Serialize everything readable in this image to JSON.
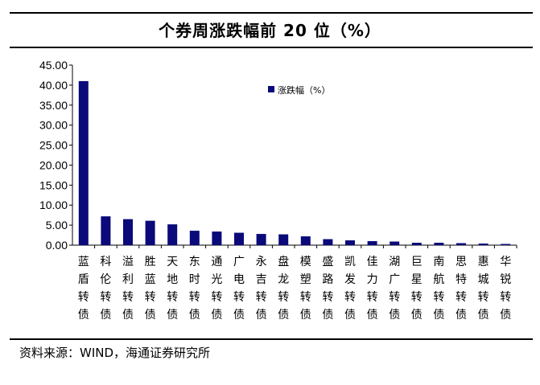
{
  "title": "个券周涨跌幅前 20 位（%）",
  "source": "资料来源：WIND，海通证券研究所",
  "chart_data": {
    "type": "bar",
    "title": "个券周涨跌幅前 20 位（%）",
    "categories": [
      "蓝盾转债",
      "科伦转债",
      "溢利转债",
      "胜蓝转债",
      "天地转债",
      "东时转债",
      "通光转债",
      "广电转债",
      "永吉转债",
      "盘龙转债",
      "模塑转债",
      "盛路转债",
      "凯发转债",
      "佳力转债",
      "湖广转债",
      "巨星转债",
      "南航转债",
      "思特转债",
      "惠城转债",
      "华锐转债"
    ],
    "series": [
      {
        "name": "涨跌幅（%）",
        "values": [
          41.0,
          7.2,
          6.5,
          6.1,
          5.2,
          3.6,
          3.4,
          3.1,
          2.8,
          2.7,
          2.2,
          1.5,
          1.2,
          1.0,
          0.9,
          0.6,
          0.6,
          0.5,
          0.4,
          0.3
        ]
      }
    ],
    "yticks": [
      "0.00",
      "5.00",
      "10.00",
      "15.00",
      "20.00",
      "25.00",
      "30.00",
      "35.00",
      "40.00",
      "45.00"
    ],
    "ylim": [
      0,
      45
    ],
    "legend": "top-center",
    "grid": false,
    "bar_color": "#0a0a7a"
  }
}
